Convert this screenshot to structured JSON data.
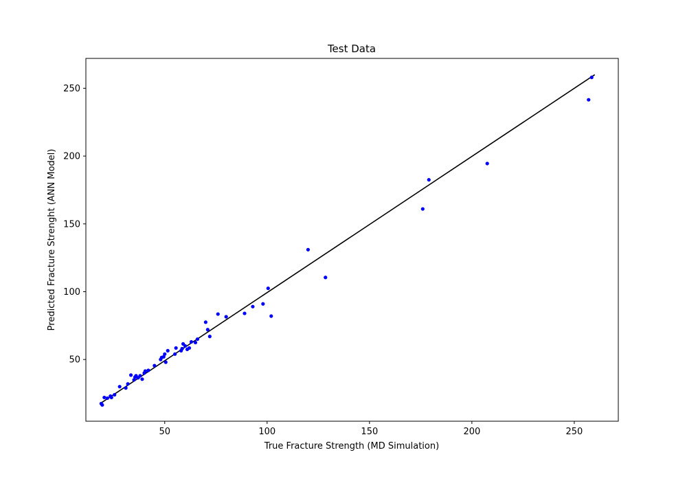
{
  "chart_data": {
    "type": "scatter",
    "title": "Test Data",
    "xlabel": "True Fracture Strength (MD Simulation)",
    "ylabel": "Predicted Fracture Strenght (ANN Model)",
    "xlim": [
      11.5,
      271.5
    ],
    "ylim": [
      4.5,
      272
    ],
    "xticks": [
      50,
      100,
      150,
      200,
      250
    ],
    "yticks": [
      50,
      100,
      150,
      200,
      250
    ],
    "grid": false,
    "colors": {
      "points": "#0000ff",
      "line": "#000000",
      "axes": "#000000",
      "background": "#ffffff"
    },
    "reference_line": {
      "x": [
        19,
        260
      ],
      "y": [
        18,
        260
      ]
    },
    "points": {
      "x": [
        19,
        19.5,
        20.5,
        22,
        23.5,
        24,
        25.5,
        28,
        31,
        32,
        33.5,
        35,
        35.5,
        36,
        37,
        38,
        39,
        40,
        40.5,
        42,
        45,
        48,
        48.5,
        49.5,
        50,
        50.5,
        51.5,
        55,
        55.5,
        58,
        58.5,
        59,
        60,
        61,
        62,
        63,
        65,
        66,
        70,
        71,
        72,
        76,
        80,
        89,
        93,
        98,
        100.5,
        102,
        120,
        128.5,
        176,
        179,
        207.5,
        257,
        258.5
      ],
      "y": [
        17.5,
        16.5,
        22,
        21.5,
        23,
        22,
        24,
        30,
        29,
        32,
        38.5,
        35,
        37,
        38,
        36.5,
        38,
        35.5,
        40,
        41.5,
        42,
        45.5,
        50,
        51.5,
        52,
        54,
        48,
        56.5,
        54,
        58.5,
        56.5,
        58,
        61.5,
        60,
        57.5,
        58.5,
        63,
        62.5,
        65,
        77.5,
        72,
        67,
        83.5,
        81.5,
        84,
        89,
        91,
        102.5,
        82,
        131,
        110.5,
        161,
        182.5,
        194.5,
        241.5,
        258
      ]
    }
  }
}
